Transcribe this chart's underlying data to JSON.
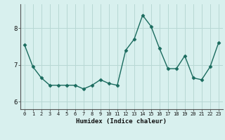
{
  "x": [
    0,
    1,
    2,
    3,
    4,
    5,
    6,
    7,
    8,
    9,
    10,
    11,
    12,
    13,
    14,
    15,
    16,
    17,
    18,
    19,
    20,
    21,
    22,
    23
  ],
  "y": [
    7.55,
    6.95,
    6.65,
    6.45,
    6.45,
    6.45,
    6.45,
    6.35,
    6.45,
    6.6,
    6.5,
    6.45,
    7.4,
    7.7,
    8.35,
    8.05,
    7.45,
    6.9,
    6.9,
    7.25,
    6.65,
    6.6,
    6.95,
    7.6
  ],
  "xlabel": "Humidex (Indice chaleur)",
  "line_color": "#1a6b5e",
  "marker": "D",
  "marker_size": 2.5,
  "bg_color": "#d8f0ee",
  "grid_color": "#b8d8d4",
  "yticks": [
    6,
    7,
    8
  ],
  "xticks": [
    0,
    1,
    2,
    3,
    4,
    5,
    6,
    7,
    8,
    9,
    10,
    11,
    12,
    13,
    14,
    15,
    16,
    17,
    18,
    19,
    20,
    21,
    22,
    23
  ],
  "ylim": [
    5.8,
    8.65
  ],
  "xlim": [
    -0.5,
    23.5
  ]
}
